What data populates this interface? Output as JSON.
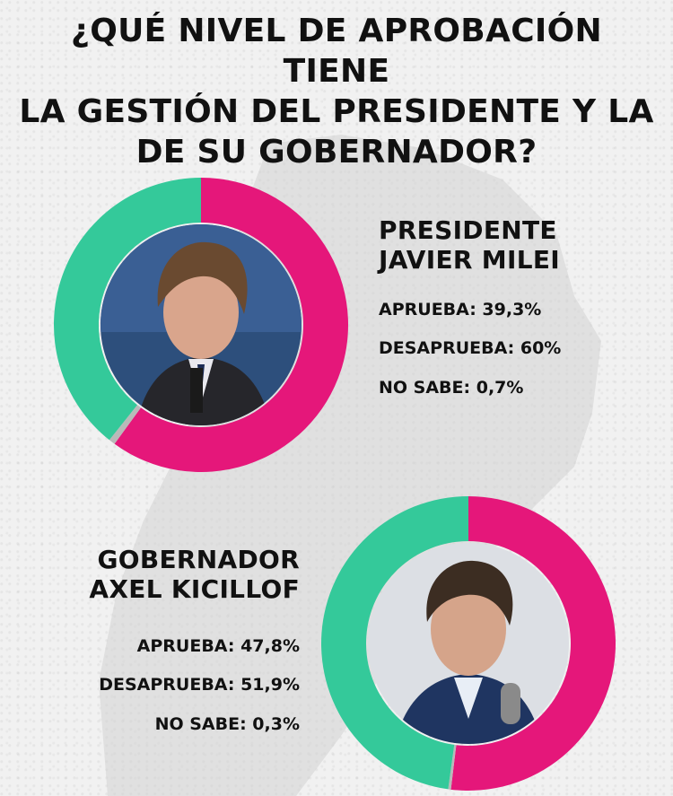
{
  "title": {
    "line1": "¿QUÉ NIVEL DE APROBACIÓN TIENE",
    "line2": "LA GESTIÓN DEL PRESIDENTE Y LA",
    "line3": "DE SU GOBERNADOR?"
  },
  "colors": {
    "aprueba": "#34c99a",
    "desaprueba": "#e5177a",
    "no_sabe": "#b9b9b9"
  },
  "chart_data": [
    {
      "type": "pie",
      "title": "PRESIDENTE JAVIER MILEI",
      "title_line1": "PRESIDENTE",
      "title_line2": "JAVIER MILEI",
      "categories": [
        "APRUEBA",
        "DESAPRUEBA",
        "NO SABE"
      ],
      "values": [
        39.3,
        60,
        0.7
      ],
      "labels": [
        "APRUEBA: 39,3%",
        "DESAPRUEBA: 60%",
        "NO SABE: 0,7%"
      ],
      "legend": "right",
      "style": "donut"
    },
    {
      "type": "pie",
      "title": "GOBERNADOR AXEL KICILLOF",
      "title_line1": "GOBERNADOR",
      "title_line2": "AXEL KICILLOF",
      "categories": [
        "APRUEBA",
        "DESAPRUEBA",
        "NO SABE"
      ],
      "values": [
        47.8,
        51.9,
        0.3
      ],
      "labels": [
        "APRUEBA: 47,8%",
        "DESAPRUEBA: 51,9%",
        "NO SABE: 0,3%"
      ],
      "legend": "left",
      "style": "donut"
    }
  ]
}
